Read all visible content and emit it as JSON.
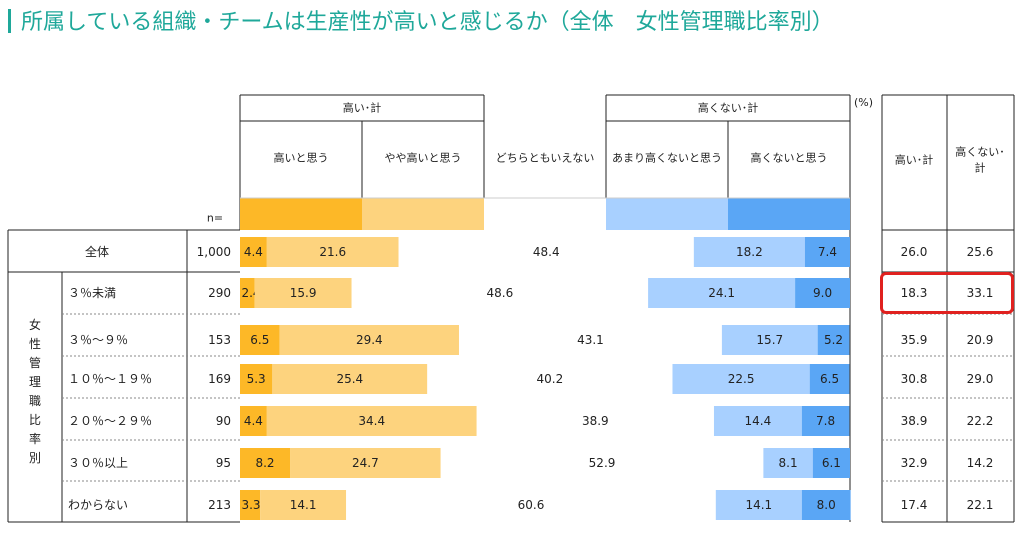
{
  "title": "所属している組織・チームは生産性が高いと感じるか（全体　女性管理職比率別）",
  "unit": "(%)",
  "headers": {
    "group_high": "高い･計",
    "group_low": "高くない･計",
    "n_label": "n=",
    "summary_high": "高い･計",
    "summary_low_line1": "高くない･",
    "summary_low_line2": "計",
    "row_group_label": [
      "女",
      "性",
      "管",
      "理",
      "職",
      "比",
      "率",
      "別"
    ]
  },
  "colors": {
    "very_high": "#fdb827",
    "high": "#fdd37e",
    "neutral": "#ffffff",
    "low": "#a8d0ff",
    "very_low": "#5aa6f5"
  },
  "chart_data": {
    "type": "bar",
    "stacked": true,
    "orientation": "horizontal",
    "categories": [
      "全体",
      "３％未満",
      "３％～９％",
      "１０％～１９％",
      "２０％～２９％",
      "３０％以上",
      "わからない"
    ],
    "n": [
      "1,000",
      "290",
      "153",
      "169",
      "90",
      "95",
      "213"
    ],
    "series": [
      {
        "name": "高いと思う",
        "values": [
          4.4,
          2.4,
          6.5,
          5.3,
          4.4,
          8.2,
          3.3
        ]
      },
      {
        "name": "やや高いと思う",
        "values": [
          21.6,
          15.9,
          29.4,
          25.4,
          34.4,
          24.7,
          14.1
        ]
      },
      {
        "name": "どちらともいえない",
        "values": [
          48.4,
          48.6,
          43.1,
          40.2,
          38.9,
          52.9,
          60.6
        ]
      },
      {
        "name": "あまり高くないと思う",
        "values": [
          18.2,
          24.1,
          15.7,
          22.5,
          14.4,
          8.1,
          14.1
        ]
      },
      {
        "name": "高くないと思う",
        "values": [
          7.4,
          9.0,
          5.2,
          6.5,
          7.8,
          6.1,
          8.0
        ]
      }
    ],
    "summary_high": [
      "26.0",
      "18.3",
      "35.9",
      "30.8",
      "38.9",
      "32.9",
      "17.4"
    ],
    "summary_low": [
      "25.6",
      "33.1",
      "20.9",
      "29.0",
      "22.2",
      "14.2",
      "22.1"
    ],
    "xlim": [
      0,
      100
    ],
    "highlighted_row": "３％未満"
  }
}
